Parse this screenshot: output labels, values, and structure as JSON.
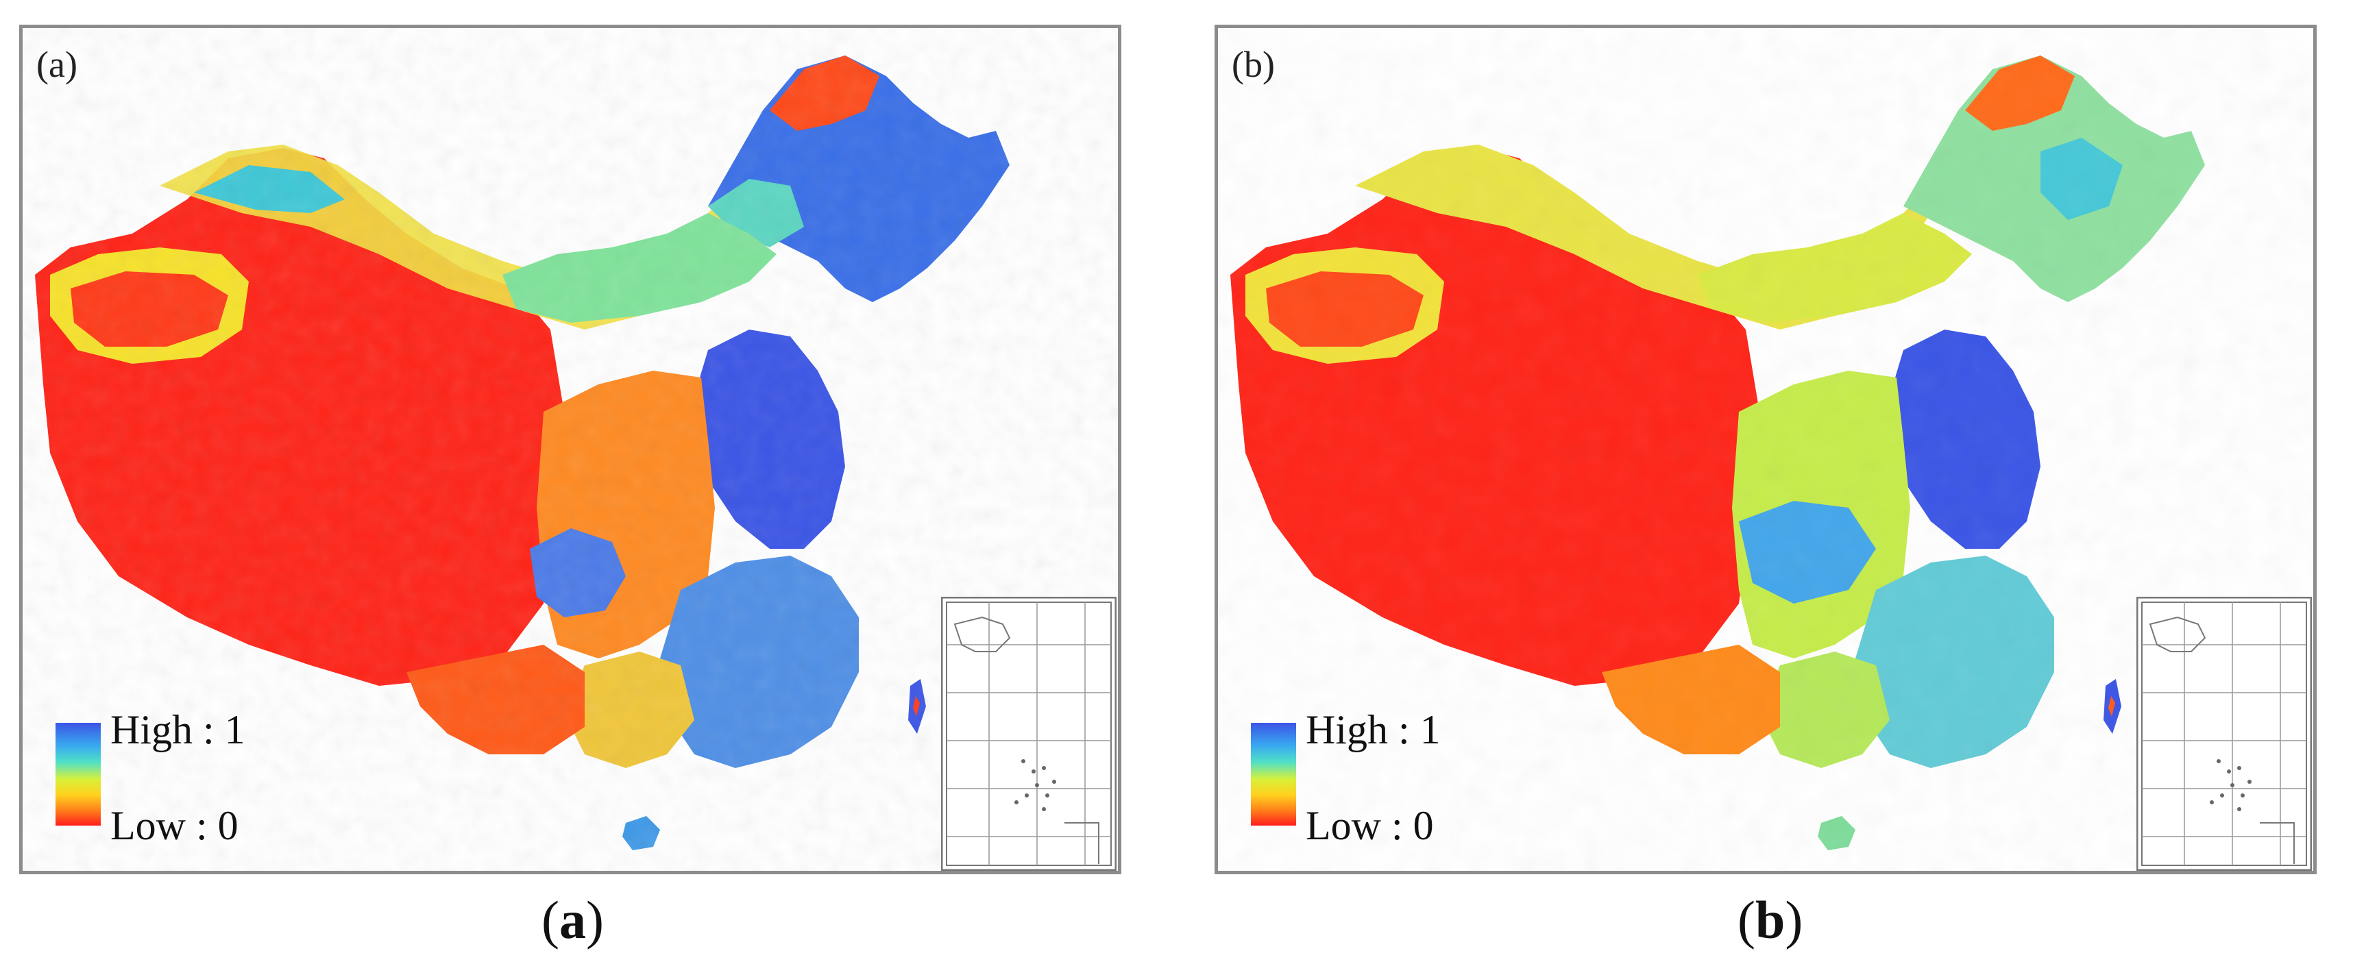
{
  "panels": [
    {
      "id": "a",
      "label": "(a)",
      "legend": {
        "high": "High : 1",
        "low": "Low : 0"
      },
      "caption_open": "(",
      "caption_letter": "a",
      "caption_close": ")"
    },
    {
      "id": "b",
      "label": "(b)",
      "legend": {
        "high": "High : 1",
        "low": "Low : 0"
      },
      "caption_open": "(",
      "caption_letter": "b",
      "caption_close": ")"
    }
  ],
  "colors": {
    "high": "#3b55e6",
    "mid_high": "#39a8f0",
    "mid": "#d7f03a",
    "mid_low": "#ff9a1a",
    "low": "#ff1e1e",
    "frame": "#8c8c8c",
    "inset_lines": "#777777"
  },
  "map_description": {
    "subject": "China suitability map",
    "scale": {
      "min": 0,
      "max": 1
    }
  }
}
